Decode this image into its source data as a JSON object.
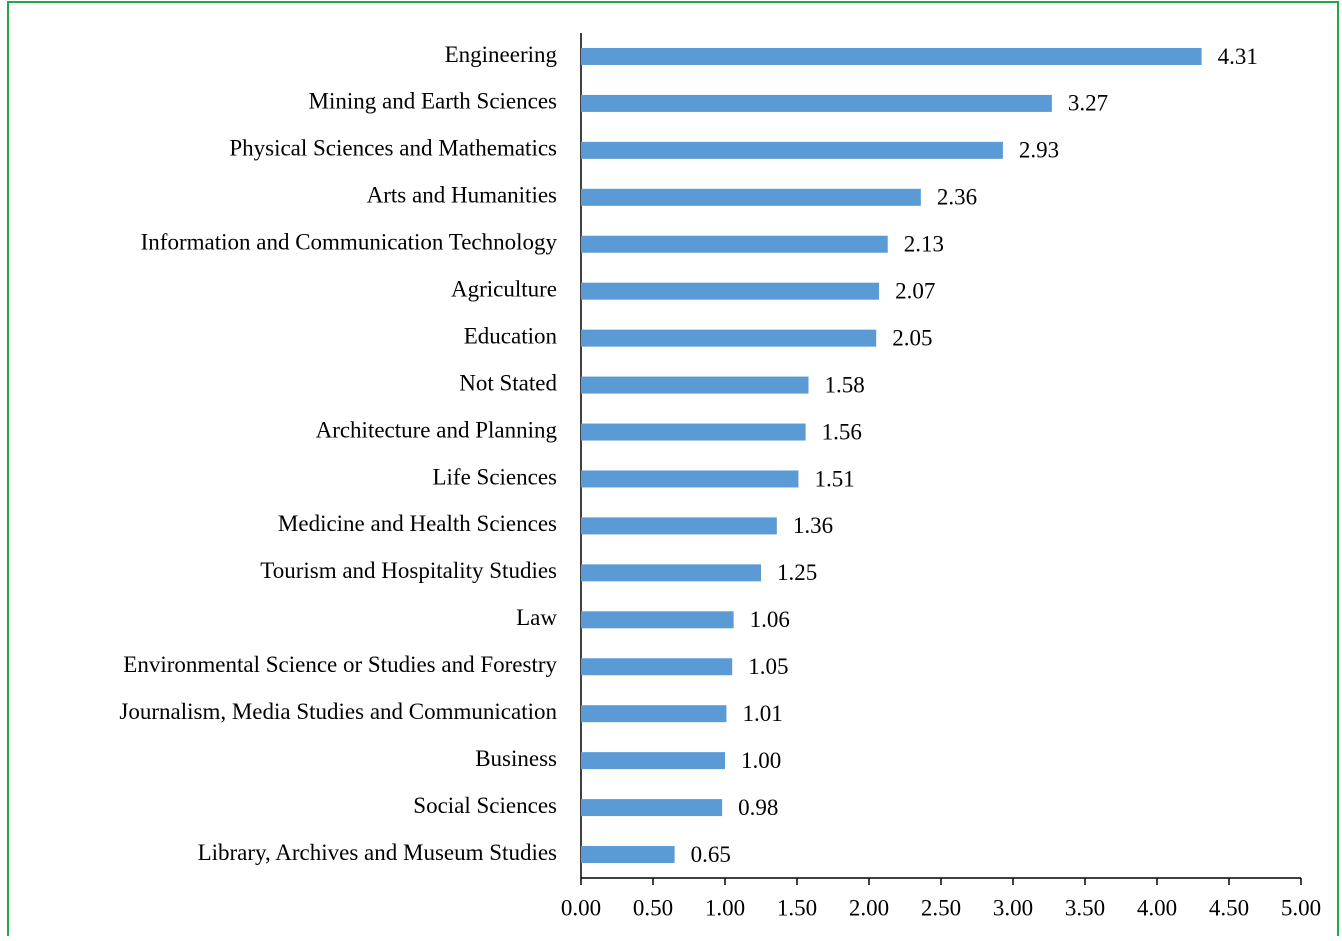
{
  "chart_data": {
    "type": "bar",
    "orientation": "horizontal",
    "color": "#5b9bd5",
    "categories": [
      "Engineering",
      "Mining and Earth Sciences",
      "Physical Sciences and Mathematics",
      "Arts and Humanities",
      "Information and Communication Technology",
      "Agriculture",
      "Education",
      "Not Stated",
      "Architecture and Planning",
      "Life Sciences",
      "Medicine and Health Sciences",
      "Tourism and Hospitality Studies",
      "Law",
      "Environmental Science or Studies and Forestry",
      "Journalism, Media Studies and Communication",
      "Business",
      "Social Sciences",
      "Library, Archives and Museum Studies"
    ],
    "values": [
      4.31,
      3.27,
      2.93,
      2.36,
      2.13,
      2.07,
      2.05,
      1.58,
      1.56,
      1.51,
      1.36,
      1.25,
      1.06,
      1.05,
      1.01,
      1.0,
      0.98,
      0.65
    ],
    "value_labels": [
      "4.31",
      "3.27",
      "2.93",
      "2.36",
      "2.13",
      "2.07",
      "2.05",
      "1.58",
      "1.56",
      "1.51",
      "1.36",
      "1.25",
      "1.06",
      "1.05",
      "1.01",
      "1.00",
      "0.98",
      "0.65"
    ],
    "xlim": [
      0,
      5
    ],
    "xticks": [
      {
        "value": 0,
        "label": "0.00"
      },
      {
        "value": 0.5,
        "label": "0.50"
      },
      {
        "value": 1,
        "label": "1.00"
      },
      {
        "value": 1.5,
        "label": "1.50"
      },
      {
        "value": 2,
        "label": "2.00"
      },
      {
        "value": 2.5,
        "label": "2.50"
      },
      {
        "value": 3,
        "label": "3.00"
      },
      {
        "value": 3.5,
        "label": "3.50"
      },
      {
        "value": 4,
        "label": "4.00"
      },
      {
        "value": 4.5,
        "label": "4.50"
      },
      {
        "value": 5,
        "label": "5.00"
      }
    ],
    "grid": false
  }
}
